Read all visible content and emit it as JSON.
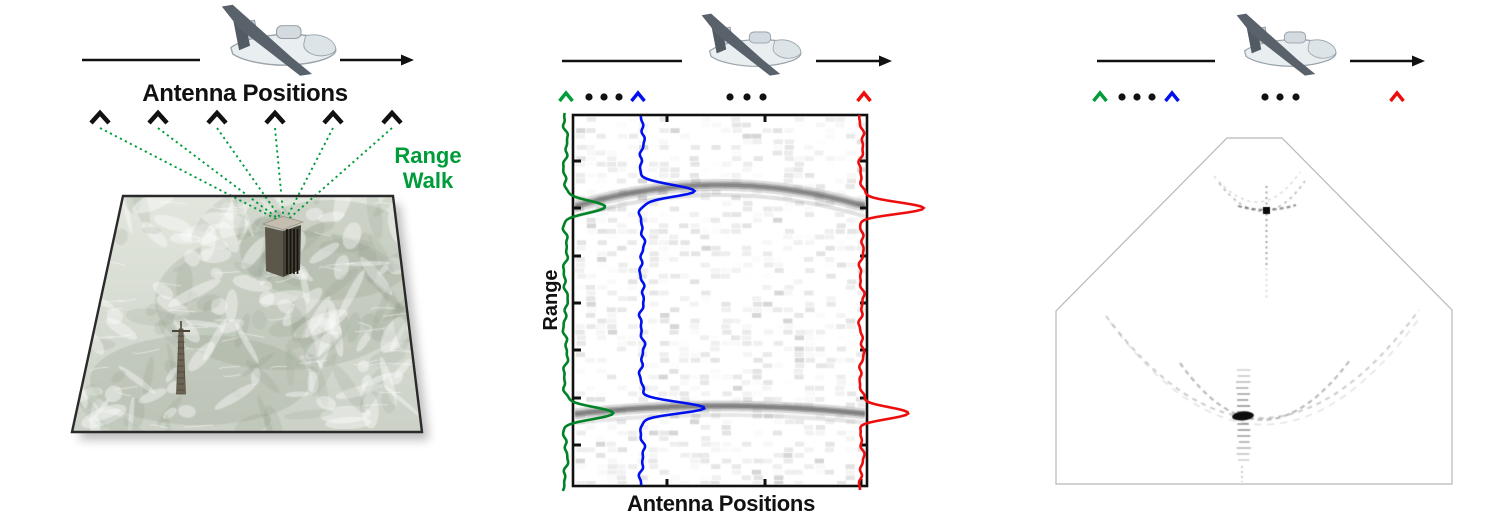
{
  "figure": {
    "description": "Three-panel synthetic aperture radar (SAR) collection and imaging diagram"
  },
  "left_panel": {
    "title": "Antenna Positions",
    "annotation": "Range\nWalk",
    "antenna_marker_count": 6,
    "scene_objects": [
      "terrain-patch",
      "building-target",
      "tower-target"
    ]
  },
  "middle_panel": {
    "ylabel": "Range",
    "xlabel": "Antenna Positions",
    "marker_sequence": [
      "green-caret",
      "dot",
      "dot",
      "dot",
      "blue-caret",
      "dot",
      "dot",
      "dot",
      "red-caret"
    ],
    "range_return_bands": 2,
    "range_profiles": [
      "green",
      "blue",
      "red"
    ]
  },
  "right_panel": {
    "marker_sequence": [
      "green-caret",
      "dot",
      "dot",
      "dot",
      "blue-caret",
      "dot",
      "dot",
      "dot",
      "red-caret"
    ],
    "point_targets": 2
  },
  "colors": {
    "green": "#009c3a",
    "green_trace": "#008227",
    "blue": "#0010ee",
    "red": "#ee0d0d",
    "black": "#111111",
    "band_gray": "#5f5f5f",
    "image_border": "#b8b8b8",
    "map_border": "#2a2a2a"
  },
  "icons": {
    "uav-drone-icon": "gray UAV aircraft silhouette",
    "flight-arrow-icon": "rightward flight-path arrow",
    "antenna-caret-icon": "^ antenna position marker",
    "ellipsis-dot-icon": "continuation dot",
    "building-icon": "3D building target on map",
    "tower-icon": "lattice tower target on map"
  }
}
